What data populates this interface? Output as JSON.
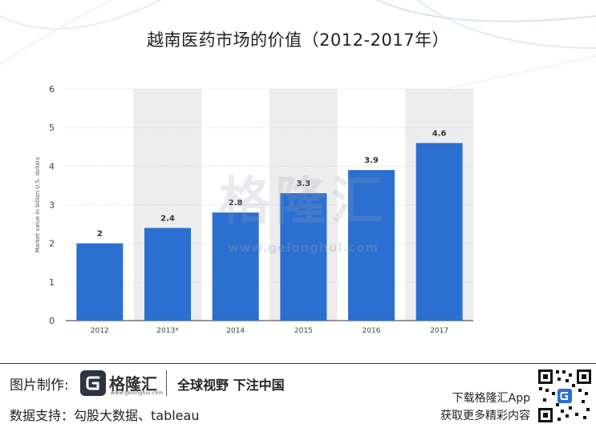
{
  "title": "越南医药市场的价值（2012-2017年）",
  "watermark": {
    "name": "格隆汇",
    "url": "www.gelonghui.com"
  },
  "chart_data": {
    "type": "bar",
    "title": "越南医药市场的价值（2012-2017年）",
    "categories": [
      "2012",
      "2013*",
      "2014",
      "2015",
      "2016",
      "2017"
    ],
    "values": [
      2,
      2.4,
      2.8,
      3.3,
      3.9,
      4.6
    ],
    "data_labels": [
      "2",
      "2.4",
      "2.8",
      "3.3",
      "3.9",
      "4.6"
    ],
    "ylabel": "Market value in billion U.S. dollars",
    "xlabel": "",
    "ylim": [
      0,
      6
    ],
    "yticks": [
      "0",
      "1",
      "2",
      "3",
      "4",
      "5",
      "6"
    ],
    "grid": true,
    "bar_color": "#2b6fd1"
  },
  "footer": {
    "credit_label": "图片制作:",
    "logo_name": "格隆汇",
    "logo_url": "www.gelonghui.com",
    "slogan": "全球视野 下注中国",
    "source": "数据支持：勾股大数据、tableau",
    "app_line1": "下载格隆汇App",
    "app_line2": "获取更多精彩内容"
  },
  "colors": {
    "accent": "#2b6fd1",
    "band": "#ededed",
    "text": "#222222"
  }
}
